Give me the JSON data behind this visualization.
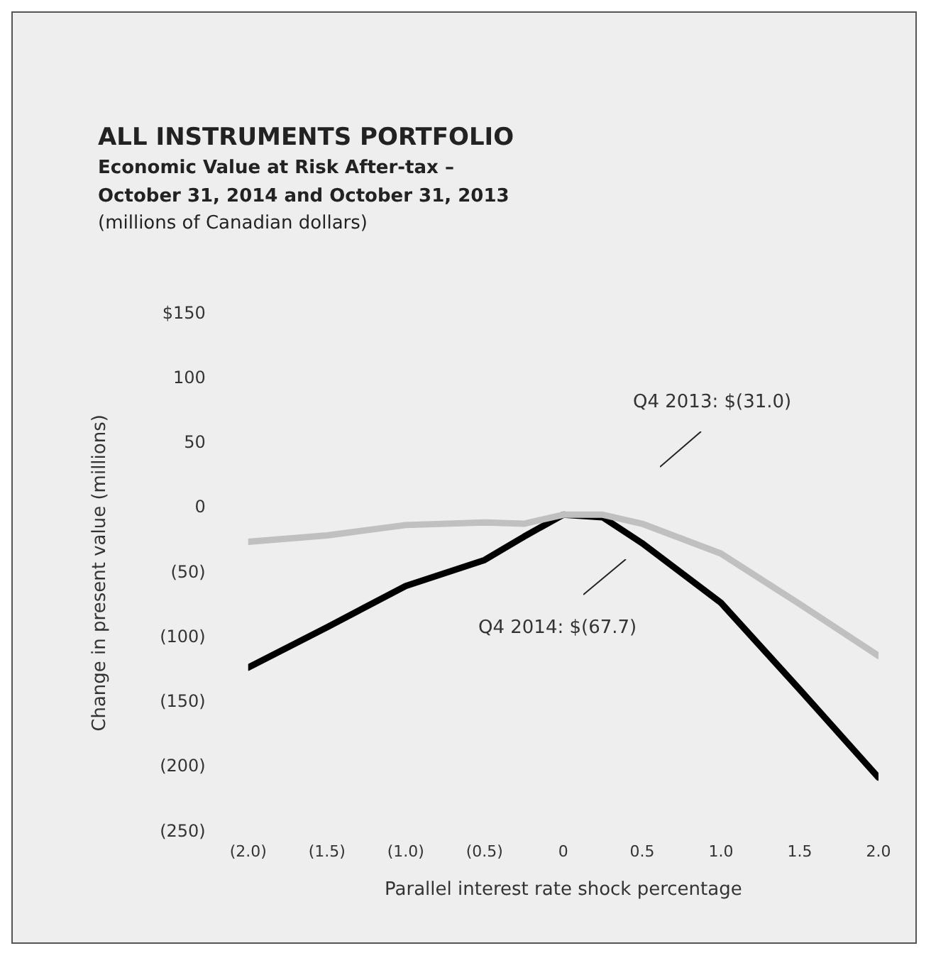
{
  "chart_data": {
    "type": "line",
    "title": "ALL INSTRUMENTS PORTFOLIO",
    "subtitle": "Economic Value at Risk After-tax –\nOctober 31, 2014 and October 31, 2013",
    "annotations": [
      "(millions of Canadian dollars)",
      "Q4 2013: $(31.0)",
      "Q4 2014: $(67.7)"
    ],
    "xlabel": "Parallel interest rate shock percentage",
    "ylabel": "Change in present value (millions)",
    "x": [
      -2,
      -1.5,
      -1,
      -0.5,
      -0.25,
      0,
      0.25,
      0.5,
      1,
      1.5,
      2
    ],
    "series": [
      {
        "color": "#c0c0c0",
        "values": [
          -26,
          -21,
          -13,
          -11,
          -12,
          -5,
          -5,
          -12,
          -35,
          -74,
          -114
        ]
      },
      {
        "color": "#000000",
        "values": [
          -123,
          -92,
          -60,
          -40,
          -22,
          -5,
          -7,
          -27,
          -73,
          -140,
          -208
        ]
      }
    ],
    "xlim": [
      -2,
      2
    ],
    "xticks": [
      {
        "value": -2,
        "label": "(2.0)"
      },
      {
        "value": -1.5,
        "label": "(1.5)"
      },
      {
        "value": -1,
        "label": "(1.0)"
      },
      {
        "value": -0.5,
        "label": "(0.5)"
      },
      0,
      {
        "value": 0.5,
        "label": "0.5"
      },
      {
        "value": 1,
        "label": "1.0"
      },
      {
        "value": 1.5,
        "label": "1.5"
      },
      {
        "value": 2,
        "label": "2.0"
      }
    ],
    "ylim": [
      -250,
      150
    ],
    "yticks": [
      {
        "value": -250,
        "label": "(250)"
      },
      {
        "value": -200,
        "label": "(200)"
      },
      {
        "value": -150,
        "label": "(150)"
      },
      {
        "value": -100,
        "label": "(100)"
      },
      {
        "value": -50,
        "label": "(50)"
      },
      0,
      50,
      100,
      {
        "value": 150,
        "label": "$150"
      }
    ],
    "grid": false,
    "legend": false,
    "marker": "none",
    "line_style": "solid"
  }
}
